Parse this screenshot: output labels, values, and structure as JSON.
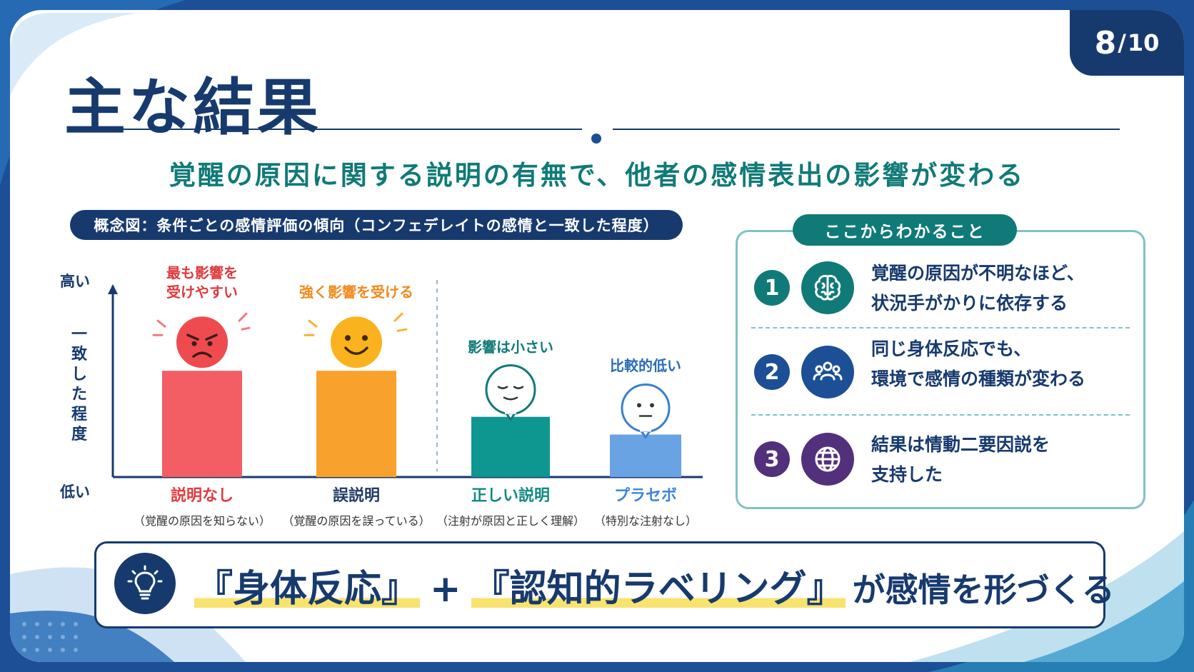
{
  "page": {
    "current": "8",
    "separator": "/",
    "total": "10"
  },
  "title": "主な結果",
  "subtitle": "覚醒の原因に関する説明の有無で、他者の感情表出の影響が変わる",
  "figure": {
    "caption": "概念図：条件ごとの感情評価の傾向（コンフェデレイトの感情と一致した程度）",
    "y_high": "高い",
    "y_low": "低い",
    "y_title": "一致した程度"
  },
  "chart_data": {
    "type": "bar",
    "title": "概念図：条件ごとの感情評価の傾向（コンフェデレイトの感情と一致した程度）",
    "ylabel": "一致した程度",
    "y_tick_labels": [
      "低い",
      "高い"
    ],
    "ylim": [
      0,
      1
    ],
    "grid": false,
    "categories": [
      "説明なし",
      "誤説明",
      "正しい説明",
      "プラセボ"
    ],
    "category_notes": [
      "（覚醒の原因を知らない）",
      "（覚醒の原因を誤っている）",
      "（注射が原因と正しく理解）",
      "（特別な注射なし）"
    ],
    "values": [
      0.6,
      0.6,
      0.34,
      0.24
    ],
    "colors": [
      "#f25e64",
      "#f9a12d",
      "#0e9691",
      "#6aa3e4"
    ],
    "label_colors": [
      "#e03a3e",
      "#1f3b66",
      "#0e8a83",
      "#3d86d8"
    ],
    "annotations": [
      "最も影響を\n受けやすい",
      "強く影響を受ける",
      "影響は小さい",
      "比較的低い"
    ],
    "annotation_colors": [
      "#e03a3e",
      "#f08a1c",
      "#107a78",
      "#2b6cb8"
    ],
    "faces": [
      "angry-face-icon",
      "smile-face-icon",
      "calm-face-icon",
      "neutral-face-icon"
    ]
  },
  "panel": {
    "title": "ここからわかること",
    "items": [
      {
        "num": "1",
        "icon": "brain-icon",
        "line1": "覚醒の原因が不明なほど、",
        "line2": "状況手がかりに依存する",
        "color": "#107a78"
      },
      {
        "num": "2",
        "icon": "group-icon",
        "line1": "同じ身体反応でも、",
        "line2": "環境で感情の種類が変わる",
        "color": "#1c4f95"
      },
      {
        "num": "3",
        "icon": "globe-icon",
        "line1": "結果は情動二要因説を",
        "line2": "支持した",
        "color": "#52307c"
      }
    ]
  },
  "bottom": {
    "icon": "lightbulb-icon",
    "part1": "『身体反応』",
    "plus": "+",
    "part2": "『認知的ラベリング』",
    "rest": "が感情を形づくる"
  }
}
